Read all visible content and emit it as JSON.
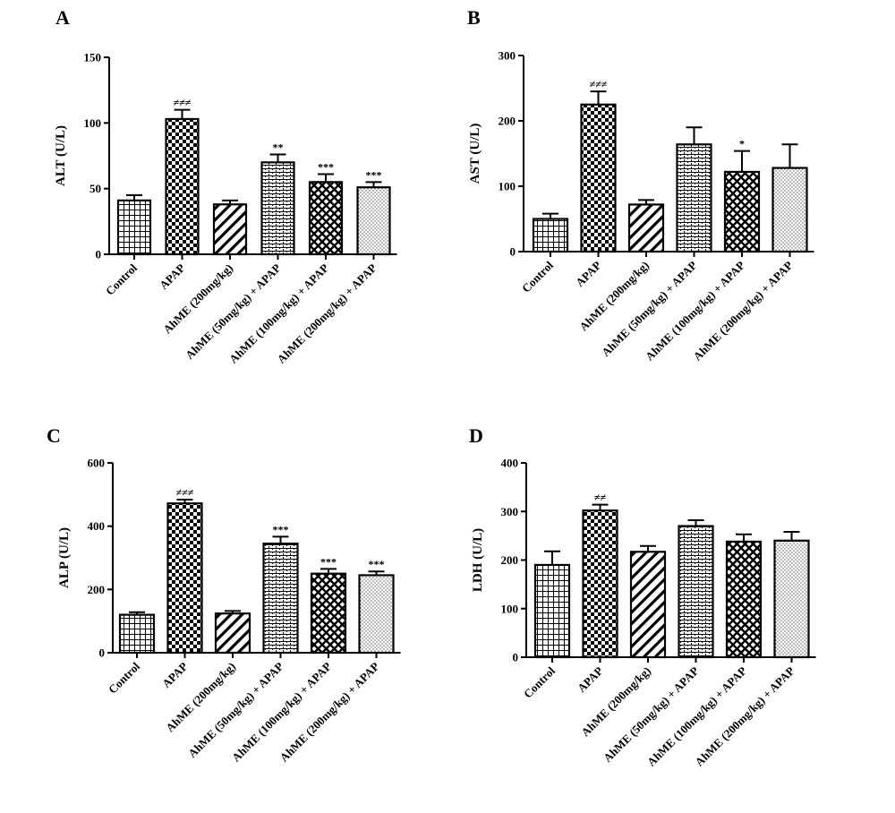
{
  "chart_data": [
    {
      "type": "bar",
      "panel": "A",
      "ylabel": "ALT (U/L)",
      "ylim": [
        0,
        150
      ],
      "yticks": [
        0,
        50,
        100,
        150
      ],
      "categories": [
        "Control",
        "APAP",
        "AhME (200mg/kg)",
        "AhME (50mg/kg) + APAP",
        "AhME (100mg/kg) + APAP",
        "AhME (200mg/kg) + APAP"
      ],
      "values": [
        41,
        103,
        38,
        70,
        55,
        51
      ],
      "errors": [
        4,
        7,
        3,
        6,
        6,
        4
      ],
      "annotations": [
        "",
        "≠≠≠",
        "",
        "**",
        "***",
        "***"
      ],
      "patterns": [
        "grid",
        "checker",
        "diagonal",
        "brick",
        "crosshatch",
        "dots"
      ]
    },
    {
      "type": "bar",
      "panel": "B",
      "ylabel": "AST (U/L)",
      "ylim": [
        0,
        300
      ],
      "yticks": [
        0,
        100,
        200,
        300
      ],
      "categories": [
        "Control",
        "APAP",
        "AhME (200mg/kg)",
        "AhME (50mg/kg) + APAP",
        "AhME (100mg/kg) + APAP",
        "AhME (200mg/kg) + APAP"
      ],
      "values": [
        50,
        225,
        72,
        164,
        122,
        128
      ],
      "errors": [
        8,
        20,
        7,
        26,
        32,
        36
      ],
      "annotations": [
        "",
        "≠≠≠",
        "",
        "",
        "*",
        ""
      ],
      "patterns": [
        "grid",
        "checker",
        "diagonal",
        "brick",
        "crosshatch",
        "dots"
      ]
    },
    {
      "type": "bar",
      "panel": "C",
      "ylabel": "ALP (U/L)",
      "ylim": [
        0,
        600
      ],
      "yticks": [
        0,
        200,
        400,
        600
      ],
      "categories": [
        "Control",
        "APAP",
        "AhME (200mg/kg)",
        "AhME (50mg/kg) + APAP",
        "AhME (100mg/kg) + APAP",
        "AhME (200mg/kg) + APAP"
      ],
      "values": [
        120,
        472,
        124,
        345,
        250,
        245
      ],
      "errors": [
        8,
        12,
        8,
        22,
        15,
        12
      ],
      "annotations": [
        "",
        "≠≠≠",
        "",
        "***",
        "***",
        "***"
      ],
      "patterns": [
        "grid",
        "checker",
        "diagonal",
        "brick",
        "crosshatch",
        "dots"
      ]
    },
    {
      "type": "bar",
      "panel": "D",
      "ylabel": "LDH (U/L)",
      "ylim": [
        0,
        400
      ],
      "yticks": [
        0,
        100,
        200,
        300,
        400
      ],
      "categories": [
        "Control",
        "APAP",
        "AhME (200mg/kg)",
        "AhME (50mg/kg) + APAP",
        "AhME (100mg/kg) + APAP",
        "AhME (200mg/kg) + APAP"
      ],
      "values": [
        190,
        302,
        217,
        270,
        238,
        240
      ],
      "errors": [
        28,
        12,
        12,
        12,
        15,
        18
      ],
      "annotations": [
        "",
        "≠≠",
        "",
        "",
        "",
        ""
      ],
      "patterns": [
        "grid",
        "checker",
        "diagonal",
        "brick",
        "crosshatch",
        "dots"
      ]
    }
  ]
}
